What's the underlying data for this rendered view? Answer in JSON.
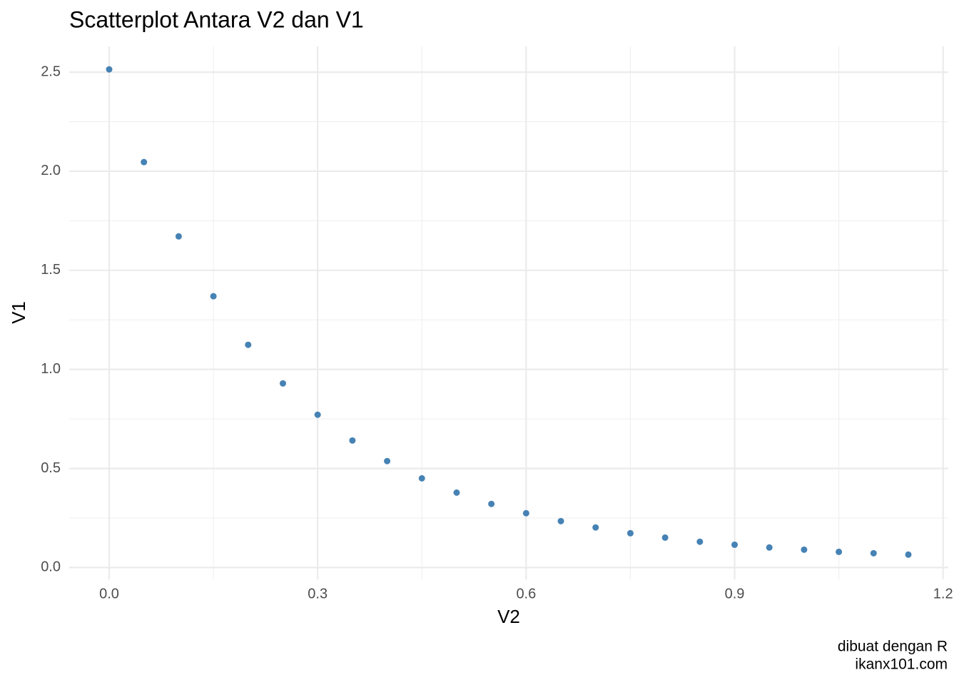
{
  "chart_data": {
    "type": "scatter",
    "title": "Scatterplot Antara V2 dan V1",
    "x_label": "V2",
    "y_label": "V1",
    "caption": [
      "dibuat dengan R",
      "ikanx101.com"
    ],
    "color": "#4682b4",
    "x": [
      0,
      0.05,
      0.1,
      0.15,
      0.2,
      0.25,
      0.3,
      0.35,
      0.4,
      0.45,
      0.5,
      0.55,
      0.6,
      0.65,
      0.7,
      0.75,
      0.8,
      0.85,
      0.9,
      0.95,
      1.0,
      1.05,
      1.1,
      1.15
    ],
    "values": [
      2.514,
      2.046,
      1.671,
      1.369,
      1.124,
      0.929,
      0.771,
      0.641,
      0.537,
      0.45,
      0.378,
      0.321,
      0.274,
      0.234,
      0.202,
      0.173,
      0.151,
      0.13,
      0.115,
      0.101,
      0.09,
      0.079,
      0.072,
      0.065
    ],
    "xlim": [
      -0.0575,
      1.2075
    ],
    "ylim": [
      -0.06,
      2.63
    ],
    "xticks": [
      {
        "value": 0,
        "label": "0.0"
      },
      0.3,
      0.6,
      0.9,
      {
        "value": 1.2,
        "label": "1.2"
      }
    ],
    "yticks": [
      {
        "value": 0,
        "label": "0.0"
      },
      0.5,
      {
        "value": 1,
        "label": "1.0"
      },
      1.5,
      {
        "value": 2,
        "label": "2.0"
      },
      2.5
    ],
    "minor_xticks": [
      0.15,
      0.45,
      0.75,
      1.05
    ],
    "minor_yticks": [
      0.25,
      0.75,
      1.25,
      1.75,
      2.25
    ],
    "grid": true
  }
}
